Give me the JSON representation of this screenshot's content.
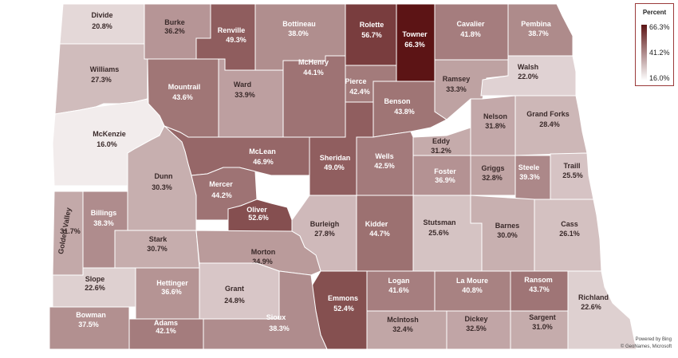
{
  "legend": {
    "title": "Percent",
    "max_label": "66.3%",
    "mid_label": "41.2%",
    "min_label": "16.0%",
    "color_low": "#ffffff",
    "color_high": "#5c1415"
  },
  "attribution": {
    "line1": "Powered by Bing",
    "line2": "© GeoNames, Microsoft"
  },
  "scale": {
    "min": 16.0,
    "max": 66.3
  },
  "counties": [
    {
      "name": "Divide",
      "value": 20.8,
      "value_label": "20.8%"
    },
    {
      "name": "Burke",
      "value": 36.2,
      "value_label": "36.2%"
    },
    {
      "name": "Renville",
      "value": 49.3,
      "value_label": "49.3%"
    },
    {
      "name": "Bottineau",
      "value": 38.0,
      "value_label": "38.0%"
    },
    {
      "name": "Rolette",
      "value": 56.7,
      "value_label": "56.7%"
    },
    {
      "name": "Towner",
      "value": 66.3,
      "value_label": "66.3%"
    },
    {
      "name": "Cavalier",
      "value": 41.8,
      "value_label": "41.8%"
    },
    {
      "name": "Pembina",
      "value": 38.7,
      "value_label": "38.7%"
    },
    {
      "name": "Williams",
      "value": 27.3,
      "value_label": "27.3%"
    },
    {
      "name": "Mountrail",
      "value": 43.6,
      "value_label": "43.6%"
    },
    {
      "name": "Ward",
      "value": 33.9,
      "value_label": "33.9%"
    },
    {
      "name": "McHenry",
      "value": 44.1,
      "value_label": "44.1%"
    },
    {
      "name": "Pierce",
      "value": 42.4,
      "value_label": "42.4%"
    },
    {
      "name": "Benson",
      "value": 43.8,
      "value_label": "43.8%"
    },
    {
      "name": "Ramsey",
      "value": 33.3,
      "value_label": "33.3%"
    },
    {
      "name": "Walsh",
      "value": 22.0,
      "value_label": "22.0%"
    },
    {
      "name": "McKenzie",
      "value": 16.0,
      "value_label": "16.0%"
    },
    {
      "name": "McLean",
      "value": 46.9,
      "value_label": "46.9%"
    },
    {
      "name": "Sheridan",
      "value": 49.0,
      "value_label": "49.0%"
    },
    {
      "name": "Wells",
      "value": 42.5,
      "value_label": "42.5%"
    },
    {
      "name": "Eddy",
      "value": 31.2,
      "value_label": "31.2%"
    },
    {
      "name": "Nelson",
      "value": 31.8,
      "value_label": "31.8%"
    },
    {
      "name": "Grand Forks",
      "value": 28.4,
      "value_label": "28.4%"
    },
    {
      "name": "Dunn",
      "value": 30.3,
      "value_label": "30.3%"
    },
    {
      "name": "Mercer",
      "value": 44.2,
      "value_label": "44.2%"
    },
    {
      "name": "Oliver",
      "value": 52.6,
      "value_label": "52.6%"
    },
    {
      "name": "Foster",
      "value": 36.9,
      "value_label": "36.9%"
    },
    {
      "name": "Griggs",
      "value": 32.8,
      "value_label": "32.8%"
    },
    {
      "name": "Steele",
      "value": 39.3,
      "value_label": "39.3%"
    },
    {
      "name": "Traill",
      "value": 25.5,
      "value_label": "25.5%"
    },
    {
      "name": "Golden Valley",
      "value": 31.7,
      "value_label": "31.7%"
    },
    {
      "name": "Billings",
      "value": 38.3,
      "value_label": "38.3%"
    },
    {
      "name": "Burleigh",
      "value": 27.8,
      "value_label": "27.8%"
    },
    {
      "name": "Kidder",
      "value": 44.7,
      "value_label": "44.7%"
    },
    {
      "name": "Stutsman",
      "value": 25.6,
      "value_label": "25.6%"
    },
    {
      "name": "Barnes",
      "value": 30.0,
      "value_label": "30.0%"
    },
    {
      "name": "Cass",
      "value": 26.1,
      "value_label": "26.1%"
    },
    {
      "name": "Stark",
      "value": 30.7,
      "value_label": "30.7%"
    },
    {
      "name": "Morton",
      "value": 34.9,
      "value_label": "34.9%"
    },
    {
      "name": "Slope",
      "value": 22.6,
      "value_label": "22.6%"
    },
    {
      "name": "Hettinger",
      "value": 36.6,
      "value_label": "36.6%"
    },
    {
      "name": "Grant",
      "value": 24.8,
      "value_label": "24.8%"
    },
    {
      "name": "Emmons",
      "value": 52.4,
      "value_label": "52.4%"
    },
    {
      "name": "Logan",
      "value": 41.6,
      "value_label": "41.6%"
    },
    {
      "name": "La Moure",
      "value": 40.8,
      "value_label": "40.8%"
    },
    {
      "name": "Ransom",
      "value": 43.7,
      "value_label": "43.7%"
    },
    {
      "name": "Richland",
      "value": 22.6,
      "value_label": "22.6%"
    },
    {
      "name": "Bowman",
      "value": 37.5,
      "value_label": "37.5%"
    },
    {
      "name": "Adams",
      "value": 42.1,
      "value_label": "42.1%"
    },
    {
      "name": "Sioux",
      "value": 38.3,
      "value_label": "38.3%"
    },
    {
      "name": "McIntosh",
      "value": 32.4,
      "value_label": "32.4%"
    },
    {
      "name": "Dickey",
      "value": 32.5,
      "value_label": "32.5%"
    },
    {
      "name": "Sargent",
      "value": 31.0,
      "value_label": "31.0%"
    }
  ]
}
